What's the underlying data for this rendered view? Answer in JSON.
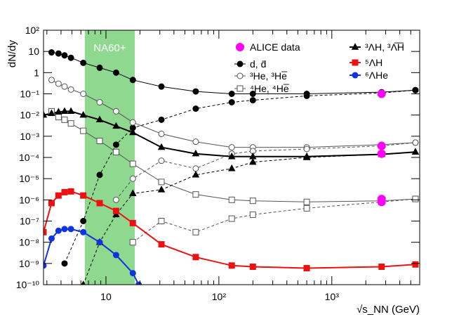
{
  "chart_data": {
    "type": "line",
    "title": "",
    "xlabel": "√s_NN (GeV)",
    "ylabel": "dN/dy",
    "xscale": "log",
    "yscale": "log",
    "xlim": [
      2.8,
      6000
    ],
    "ylim": [
      1e-10,
      100
    ],
    "x_ticks": [
      {
        "value": 10,
        "label": "10"
      },
      {
        "value": 100,
        "label": "10²"
      },
      {
        "value": 1000,
        "label": "10³"
      }
    ],
    "y_ticks": [
      {
        "value": 100,
        "label": "10²"
      },
      {
        "value": 10,
        "label": "10"
      },
      {
        "value": 1,
        "label": "1"
      },
      {
        "value": 0.1,
        "label": "10⁻¹"
      },
      {
        "value": 0.01,
        "label": "10⁻²"
      },
      {
        "value": 0.001,
        "label": "10⁻³"
      },
      {
        "value": 0.0001,
        "label": "10⁻⁴"
      },
      {
        "value": 1e-05,
        "label": "10⁻⁵"
      },
      {
        "value": 1e-06,
        "label": "10⁻⁶"
      },
      {
        "value": 1e-07,
        "label": "10⁻⁷"
      },
      {
        "value": 1e-08,
        "label": "10⁻⁸"
      },
      {
        "value": 1e-09,
        "label": "10⁻⁹"
      },
      {
        "value": 1e-10,
        "label": "10⁻¹⁰"
      }
    ],
    "band": {
      "label": "NA60+",
      "xmin": 6.5,
      "xmax": 18,
      "color": "#8fd88f"
    },
    "legend": {
      "position": "top-right"
    },
    "series": [
      {
        "name": "d, d̄ (particle)",
        "legend": "d, d̄",
        "color": "#000000",
        "marker": "circle",
        "filled": true,
        "line": "solid",
        "linewidth": 1,
        "x": [
          3.3,
          3.8,
          4.3,
          4.9,
          6.3,
          8.8,
          12.3,
          17.3,
          31,
          62.4,
          130,
          200,
          600,
          2760,
          5500
        ],
        "y": [
          9,
          8,
          6.5,
          5,
          2.9,
          1.7,
          1.0,
          0.45,
          0.22,
          0.13,
          0.1,
          0.1,
          0.1,
          0.12,
          0.15
        ]
      },
      {
        "name": "d, d̄ (antiparticle)",
        "legend": "",
        "color": "#000000",
        "marker": "circle",
        "filled": true,
        "line": "dashed",
        "linewidth": 1,
        "x": [
          4.3,
          6.3,
          8.8,
          12.3,
          17.3,
          31,
          62.4,
          130,
          200,
          600,
          2760,
          5500
        ],
        "y": [
          1e-09,
          1e-07,
          1.5e-05,
          0.0004,
          0.0025,
          0.006,
          0.02,
          0.04,
          0.05,
          0.08,
          0.11,
          0.15
        ]
      },
      {
        "name": "3He, 3He-bar (particle)",
        "legend": "³He, ³He̅",
        "color": "#555555",
        "marker": "circle",
        "filled": false,
        "line": "solid",
        "linewidth": 1,
        "x": [
          3.3,
          3.8,
          4.3,
          4.9,
          6.3,
          8.8,
          12.3,
          17.3,
          31,
          62.4,
          130,
          200,
          600,
          2760,
          5500
        ],
        "y": [
          0.45,
          0.3,
          0.22,
          0.16,
          0.1,
          0.04,
          0.015,
          0.0045,
          0.0013,
          0.00055,
          0.0003,
          0.0003,
          0.0003,
          0.0004,
          0.0005
        ]
      },
      {
        "name": "3He, 3He-bar (antiparticle)",
        "legend": "",
        "color": "#555555",
        "marker": "circle",
        "filled": false,
        "line": "dashed",
        "linewidth": 1,
        "x": [
          12.3,
          17.3,
          31,
          62.4,
          130,
          200,
          600,
          2760,
          5500
        ],
        "y": [
          1e-06,
          1e-05,
          7e-05,
          3e-05,
          0.00015,
          0.0002,
          0.00025,
          0.00035,
          0.0005
        ]
      },
      {
        "name": "4He, 4He-bar (particle)",
        "legend": "⁴He, ⁴He̅",
        "color": "#555555",
        "marker": "square",
        "filled": false,
        "line": "solid",
        "linewidth": 1,
        "x": [
          3.3,
          3.8,
          4.3,
          4.9,
          6.3,
          8.8,
          12.3,
          17.3,
          31,
          62.4,
          130,
          200,
          600,
          2760,
          5500
        ],
        "y": [
          0.015,
          0.008,
          0.006,
          0.004,
          0.0018,
          0.0006,
          0.00018,
          5e-05,
          7e-06,
          1.8e-06,
          1e-06,
          9e-07,
          8e-07,
          9e-07,
          1.1e-06
        ]
      },
      {
        "name": "4He, 4He-bar (antiparticle)",
        "legend": "",
        "color": "#555555",
        "marker": "square",
        "filled": false,
        "line": "dashed",
        "linewidth": 1,
        "x": [
          17.3,
          31,
          62.4,
          130,
          200,
          600,
          2760,
          5500
        ],
        "y": [
          1e-08,
          1e-07,
          3e-08,
          1.3e-07,
          2e-07,
          4e-07,
          8e-07,
          1.1e-06
        ]
      },
      {
        "name": "3LH, 3LH-bar (particle)",
        "legend": "³ΛH, ³Λ̅H̅",
        "color": "#000000",
        "marker": "triangle",
        "filled": true,
        "line": "solid",
        "linewidth": 2,
        "x": [
          2.8,
          3.3,
          3.8,
          4.3,
          4.9,
          6.3,
          8.8,
          12.3,
          17.3,
          31,
          62.4,
          130,
          200,
          600,
          2760,
          5500
        ],
        "y": [
          0.01,
          0.012,
          0.014,
          0.015,
          0.015,
          0.01,
          0.006,
          0.003,
          0.0015,
          0.0003,
          0.00015,
          0.00011,
          0.00011,
          0.00011,
          0.00014,
          0.00018
        ]
      },
      {
        "name": "3LH, 3LH-bar (antiparticle)",
        "legend": "",
        "color": "#000000",
        "marker": "triangle",
        "filled": true,
        "line": "dashed",
        "linewidth": 1,
        "x": [
          6.3,
          8.8,
          12.3,
          17.3,
          31,
          62.4,
          130,
          200,
          600,
          2760,
          5500
        ],
        "y": [
          1e-10,
          1e-08,
          2e-07,
          2e-06,
          3e-06,
          1.5e-05,
          3e-05,
          6e-05,
          0.0001,
          0.00014,
          0.00018
        ]
      },
      {
        "name": "5LH",
        "legend": "⁵ΛH",
        "color": "#ee1111",
        "marker": "square",
        "filled": true,
        "line": "solid",
        "linewidth": 2,
        "x": [
          2.8,
          3.3,
          3.8,
          4.3,
          4.9,
          6.3,
          8.8,
          12.3,
          17.3,
          31,
          62.4,
          130,
          200,
          600,
          2760,
          5500
        ],
        "y": [
          3e-08,
          7e-07,
          1.6e-06,
          2.3e-06,
          2.5e-06,
          1.6e-06,
          7e-07,
          3e-07,
          8e-08,
          8e-09,
          2e-09,
          8e-10,
          7e-10,
          6e-10,
          7e-10,
          9e-10
        ]
      },
      {
        "name": "6LHe",
        "legend": "⁶ΛHe",
        "color": "#1133dd",
        "marker": "circle",
        "filled": true,
        "line": "solid",
        "linewidth": 2,
        "x": [
          2.8,
          3.3,
          3.8,
          4.3,
          4.9,
          6.3,
          8.8,
          12.3,
          17.3,
          19.5
        ],
        "y": [
          8e-10,
          1.5e-08,
          3.5e-08,
          4.2e-08,
          4.2e-08,
          3e-08,
          1e-08,
          2.5e-09,
          3.5e-10,
          1e-10
        ]
      },
      {
        "name": "ALICE data",
        "legend": "ALICE data",
        "color": "#ff00ff",
        "marker": "circle",
        "filled": true,
        "line": "none",
        "size": 5.5,
        "x": [
          2760,
          2760,
          2760,
          2760,
          2760
        ],
        "y": [
          0.1,
          0.00035,
          0.00015,
          8e-07,
          1.1e-06
        ]
      }
    ]
  }
}
